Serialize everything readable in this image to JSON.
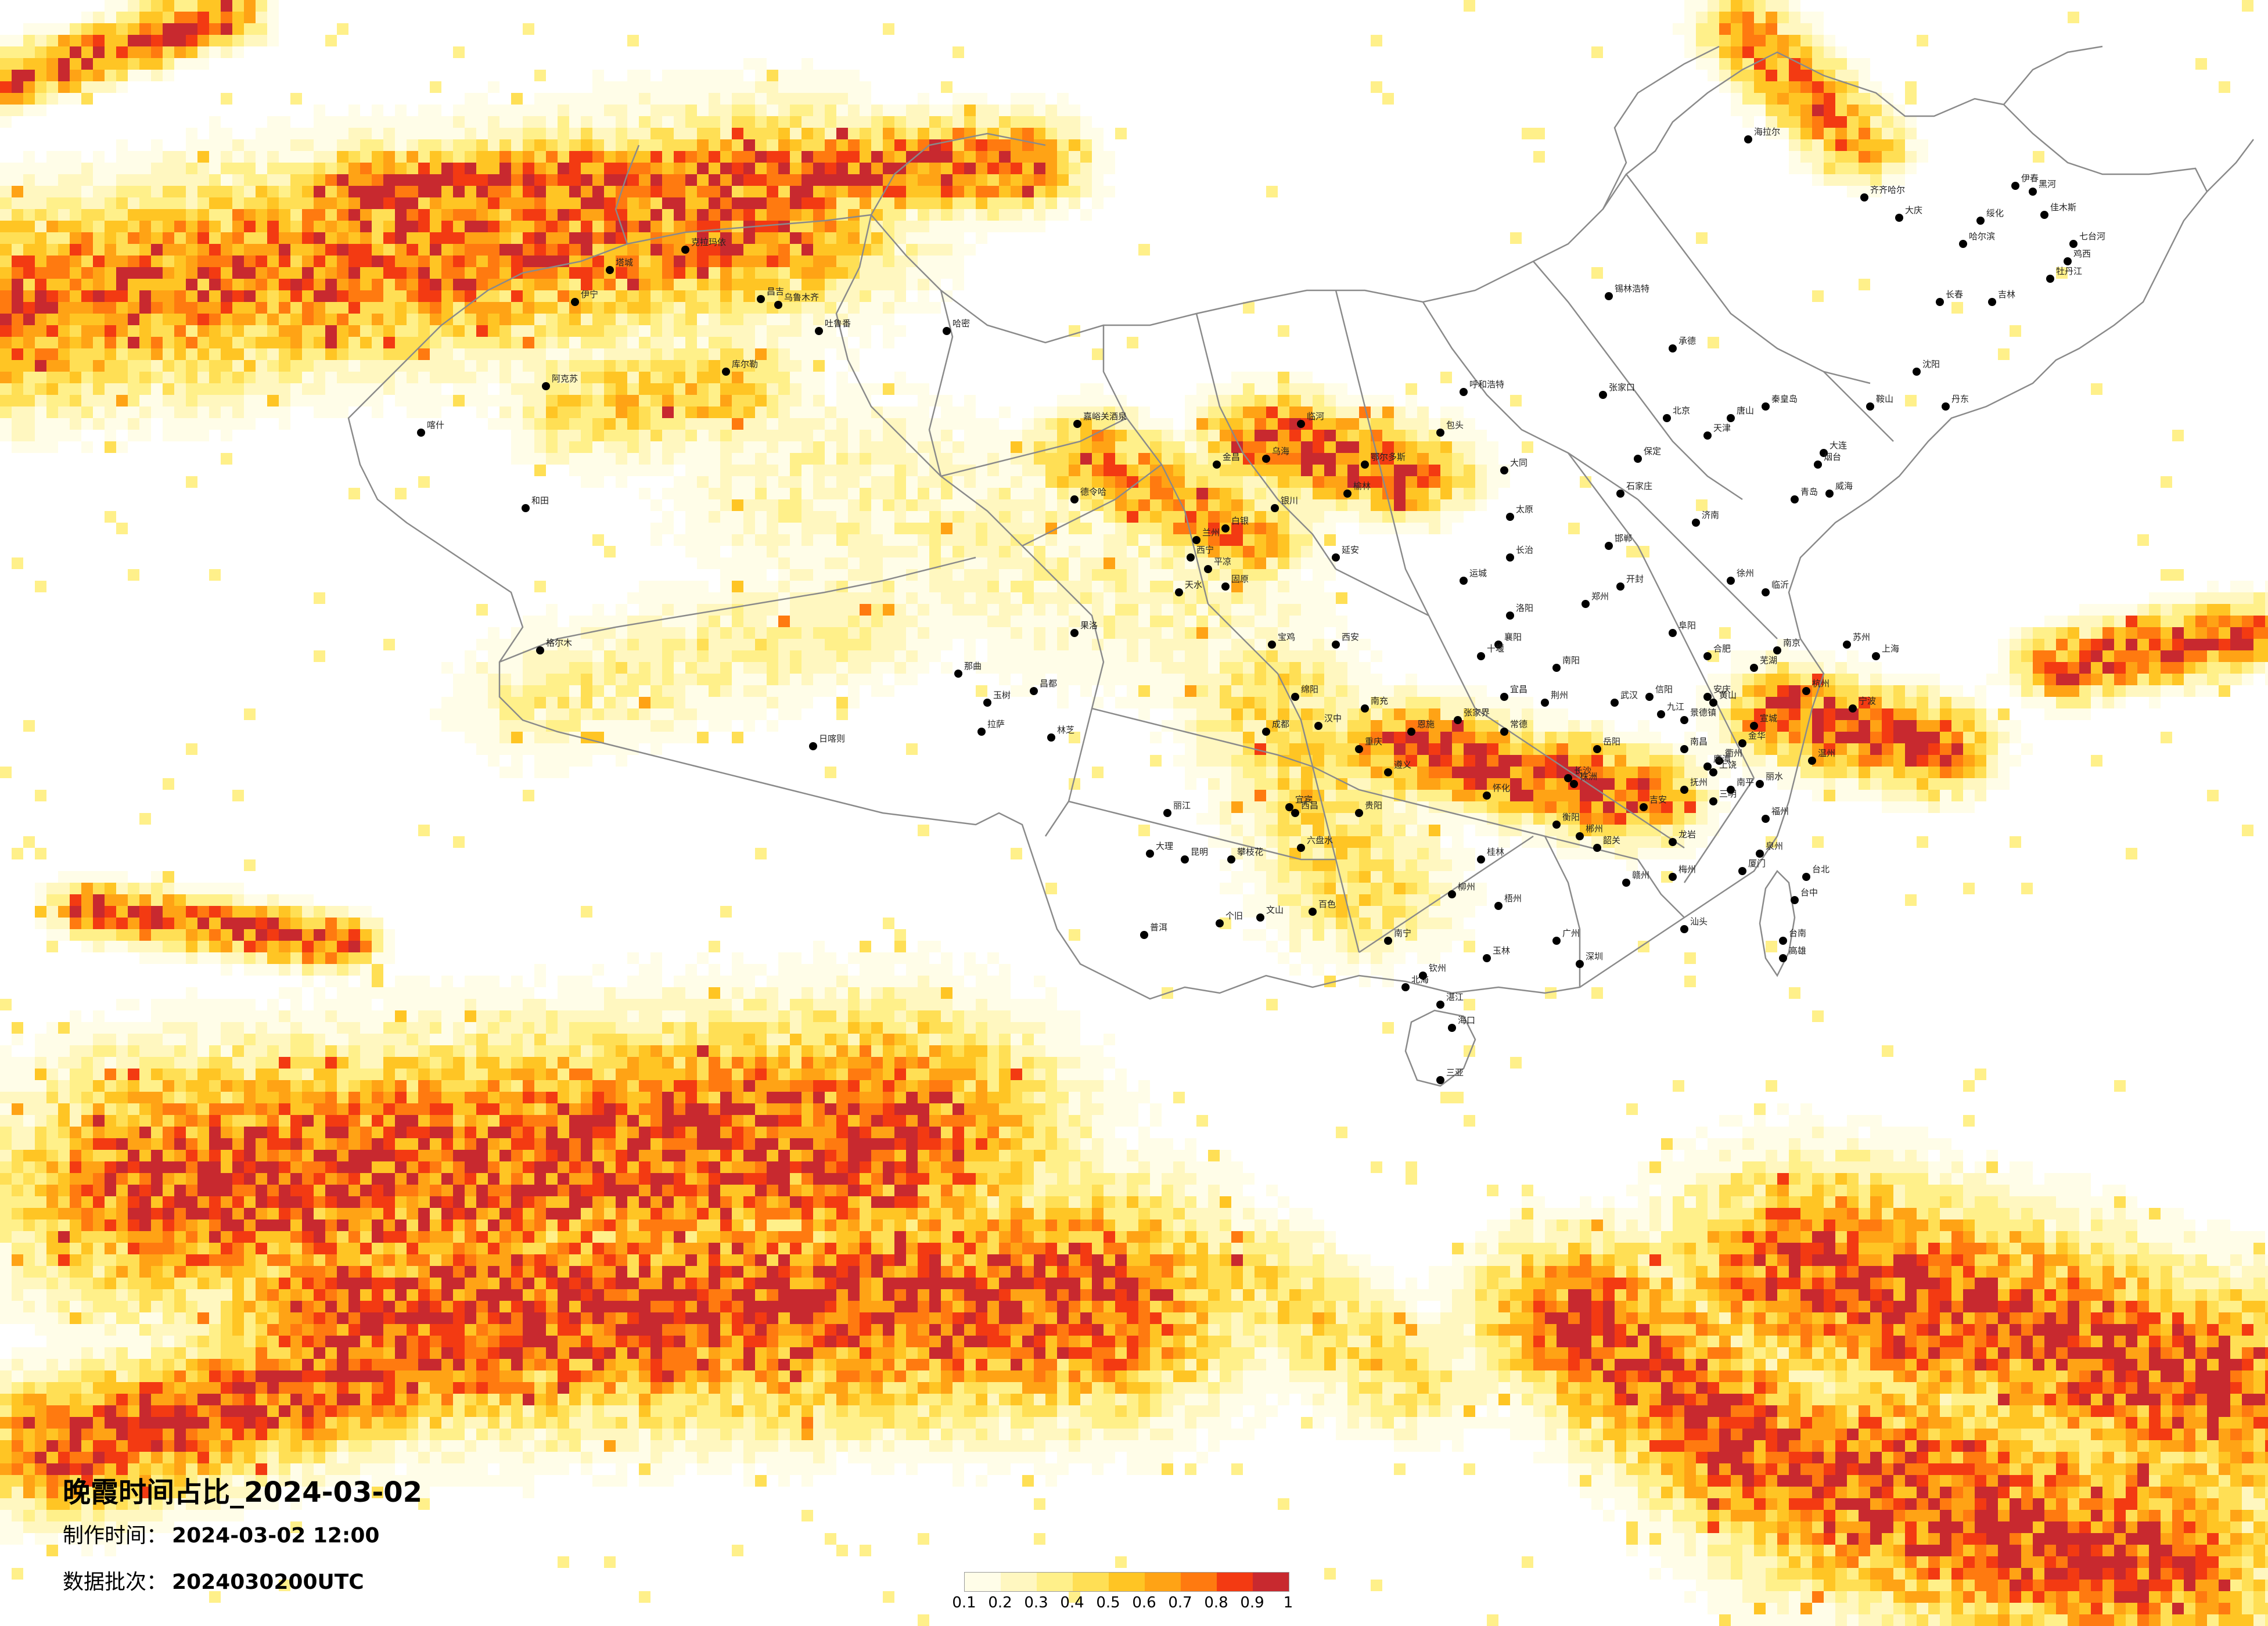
{
  "title": "晚霞时间占比_2024-03-02",
  "meta": {
    "made_label": "制作时间：",
    "made_value": "2024-03-02 12:00",
    "batch_label": "数据批次：",
    "batch_value": "2024030200UTC"
  },
  "legend": {
    "colors": [
      "#fffde8",
      "#fff7c0",
      "#fff08a",
      "#ffdf55",
      "#ffc524",
      "#ffa315",
      "#ff7a10",
      "#f33a12",
      "#c8292f"
    ],
    "ticks": [
      "0.1",
      "0.2",
      "0.3",
      "0.4",
      "0.5",
      "0.6",
      "0.7",
      "0.8",
      "0.9",
      "1"
    ]
  },
  "map_style": {
    "border": "#8a8a8a",
    "city_dot": "#000000",
    "land": "#ffffff"
  },
  "cities": [
    {
      "name": "塔城"
    },
    {
      "name": "克拉玛依"
    },
    {
      "name": "伊宁"
    },
    {
      "name": "昌吉"
    },
    {
      "name": "乌鲁木齐"
    },
    {
      "name": "吐鲁番"
    },
    {
      "name": "哈密"
    },
    {
      "name": "阿克苏"
    },
    {
      "name": "喀什"
    },
    {
      "name": "库尔勒"
    },
    {
      "name": "和田"
    },
    {
      "name": "嘉峪关酒泉"
    },
    {
      "name": "格尔木"
    },
    {
      "name": "德令哈"
    },
    {
      "name": "西宁"
    },
    {
      "name": "拉萨"
    },
    {
      "name": "日喀则"
    },
    {
      "name": "那曲"
    },
    {
      "name": "林芝"
    },
    {
      "name": "昌都"
    },
    {
      "name": "金昌"
    },
    {
      "name": "兰州"
    },
    {
      "name": "银川"
    },
    {
      "name": "呼和浩特"
    },
    {
      "name": "包头"
    },
    {
      "name": "鄂尔多斯"
    },
    {
      "name": "太原"
    },
    {
      "name": "石家庄"
    },
    {
      "name": "北京"
    },
    {
      "name": "天津"
    },
    {
      "name": "张家口"
    },
    {
      "name": "承德"
    },
    {
      "name": "锡林浩特"
    },
    {
      "name": "海拉尔"
    },
    {
      "name": "齐齐哈尔"
    },
    {
      "name": "大庆"
    },
    {
      "name": "哈尔滨"
    },
    {
      "name": "长春"
    },
    {
      "name": "吉林"
    },
    {
      "name": "沈阳"
    },
    {
      "name": "大连"
    },
    {
      "name": "鞍山"
    },
    {
      "name": "丹东"
    },
    {
      "name": "佳木斯"
    },
    {
      "name": "牡丹江"
    },
    {
      "name": "鸡西"
    },
    {
      "name": "七台河"
    },
    {
      "name": "黑河"
    },
    {
      "name": "伊春"
    },
    {
      "name": "绥化"
    },
    {
      "name": "济南"
    },
    {
      "name": "青岛"
    },
    {
      "name": "烟台"
    },
    {
      "name": "威海"
    },
    {
      "name": "临沂"
    },
    {
      "name": "郑州"
    },
    {
      "name": "洛阳"
    },
    {
      "name": "开封"
    },
    {
      "name": "南阳"
    },
    {
      "name": "信阳"
    },
    {
      "name": "西安"
    },
    {
      "name": "宝鸡"
    },
    {
      "name": "汉中"
    },
    {
      "name": "延安"
    },
    {
      "name": "榆林"
    },
    {
      "name": "成都"
    },
    {
      "name": "重庆"
    },
    {
      "name": "绵阳"
    },
    {
      "name": "南充"
    },
    {
      "name": "宜宾"
    },
    {
      "name": "贵阳"
    },
    {
      "name": "遵义"
    },
    {
      "name": "昆明"
    },
    {
      "name": "大理"
    },
    {
      "name": "丽江"
    },
    {
      "name": "普洱"
    },
    {
      "name": "个旧"
    },
    {
      "name": "文山"
    },
    {
      "name": "南宁"
    },
    {
      "name": "桂林"
    },
    {
      "name": "柳州"
    },
    {
      "name": "北海"
    },
    {
      "name": "玉林"
    },
    {
      "name": "钦州"
    },
    {
      "name": "广州"
    },
    {
      "name": "深圳"
    },
    {
      "name": "汕头"
    },
    {
      "name": "湛江"
    },
    {
      "name": "海口"
    },
    {
      "name": "三亚"
    },
    {
      "name": "长沙"
    },
    {
      "name": "岳阳"
    },
    {
      "name": "衡阳"
    },
    {
      "name": "怀化"
    },
    {
      "name": "武汉"
    },
    {
      "name": "宜昌"
    },
    {
      "name": "襄阳"
    },
    {
      "name": "荆州"
    },
    {
      "name": "南昌"
    },
    {
      "name": "赣州"
    },
    {
      "name": "九江"
    },
    {
      "name": "合肥"
    },
    {
      "name": "芜湖"
    },
    {
      "name": "南京"
    },
    {
      "name": "苏州"
    },
    {
      "name": "上海"
    },
    {
      "name": "杭州"
    },
    {
      "name": "宁波"
    },
    {
      "name": "温州"
    },
    {
      "name": "福州"
    },
    {
      "name": "厦门"
    },
    {
      "name": "泉州"
    },
    {
      "name": "台北"
    },
    {
      "name": "台中"
    },
    {
      "name": "台南"
    },
    {
      "name": "高雄"
    },
    {
      "name": "徐州"
    },
    {
      "name": "阜阳"
    },
    {
      "name": "安庆"
    },
    {
      "name": "邯郸"
    },
    {
      "name": "保定"
    },
    {
      "name": "唐山"
    },
    {
      "name": "秦皇岛"
    },
    {
      "name": "大同"
    },
    {
      "name": "运城"
    },
    {
      "name": "长治"
    },
    {
      "name": "天水"
    },
    {
      "name": "平凉"
    },
    {
      "name": "白银"
    },
    {
      "name": "固原"
    },
    {
      "name": "乌海"
    },
    {
      "name": "临河"
    },
    {
      "name": "玉树"
    },
    {
      "name": "果洛"
    },
    {
      "name": "西昌"
    },
    {
      "name": "攀枝花"
    },
    {
      "name": "六盘水"
    },
    {
      "name": "百色"
    },
    {
      "name": "梧州"
    },
    {
      "name": "韶关"
    },
    {
      "name": "梅州"
    },
    {
      "name": "龙岩"
    },
    {
      "name": "三明"
    },
    {
      "name": "南平"
    },
    {
      "name": "丽水"
    },
    {
      "name": "金华"
    },
    {
      "name": "衢州"
    },
    {
      "name": "上饶"
    },
    {
      "name": "景德镇"
    },
    {
      "name": "黄山"
    },
    {
      "name": "宣城"
    },
    {
      "name": "十堰"
    },
    {
      "name": "恩施"
    },
    {
      "name": "张家界"
    },
    {
      "name": "常德"
    },
    {
      "name": "株洲"
    },
    {
      "name": "郴州"
    },
    {
      "name": "吉安"
    },
    {
      "name": "抚州"
    },
    {
      "name": "鹰潭"
    }
  ]
}
